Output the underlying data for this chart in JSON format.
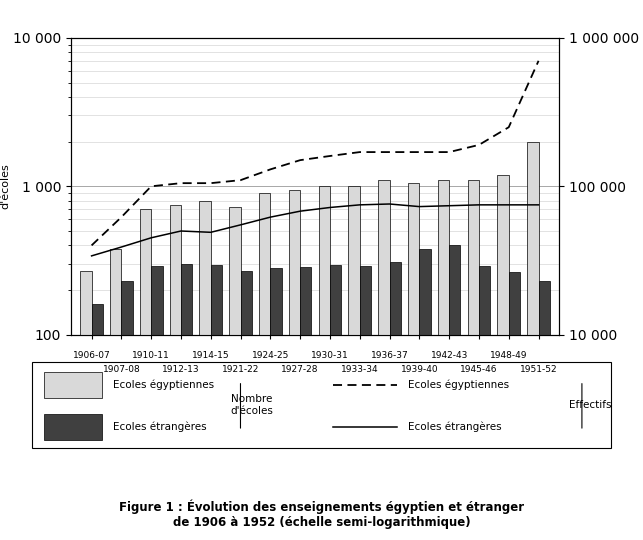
{
  "years": [
    "1906-07",
    "1907-08",
    "1910-11",
    "1912-13",
    "1914-15",
    "1921-22",
    "1924-25",
    "1927-28",
    "1930-31",
    "1933-34",
    "1936-37",
    "1939-40",
    "1942-43",
    "1945-46",
    "1948-49",
    "1951-52"
  ],
  "x_positions": [
    0,
    1,
    2,
    3,
    4,
    5,
    6,
    7,
    8,
    9,
    10,
    11,
    12,
    13,
    14,
    15
  ],
  "xtick_top_labels": [
    "1906-07",
    "",
    "1910-11",
    "",
    "1914-15",
    "",
    "1924-25",
    "",
    "1930-31",
    "",
    "1936-37",
    "",
    "1942-43",
    "",
    "1948-49",
    ""
  ],
  "xtick_bot_labels": [
    "",
    "1907-08",
    "",
    "1912-13",
    "",
    "1921-22",
    "",
    "1927-28",
    "",
    "1933-34",
    "",
    "1939-40",
    "",
    "1945-46",
    "",
    "1951-52"
  ],
  "ecoles_egyptiennes": [
    270,
    380,
    700,
    750,
    800,
    720,
    900,
    950,
    1000,
    1000,
    1100,
    1050,
    1100,
    1100,
    1200,
    2000
  ],
  "ecoles_etrangeres": [
    160,
    230,
    290,
    300,
    295,
    270,
    280,
    285,
    295,
    290,
    310,
    380,
    400,
    290,
    265,
    230
  ],
  "effectifs_egyptiens_right": [
    40000,
    62000,
    100000,
    105000,
    105000,
    110000,
    130000,
    150000,
    160000,
    170000,
    170000,
    170000,
    170000,
    190000,
    250000,
    700000
  ],
  "effectifs_etrangers_right": [
    34000,
    39000,
    45000,
    50000,
    49000,
    55000,
    62000,
    68000,
    72000,
    75000,
    76000,
    73000,
    74000,
    75000,
    75000,
    75000
  ],
  "bar_width": 0.38,
  "left_ylim": [
    100,
    10000
  ],
  "right_ylim": [
    10000,
    1000000
  ],
  "color_egyptien_bar": "#d9d9d9",
  "color_etranger_bar": "#404040",
  "title": "Figure 1 : Évolution des enseignements égyptien et étranger\nde 1906 à 1952 (échelle semi-logarithmique)",
  "ylabel_left": "Nombre\nd'écoles",
  "ylabel_right": "Effectifs",
  "legend_bar_egyptien": "Ecoles égyptiennes",
  "legend_bar_etranger": "Ecoles étrangères",
  "legend_line_egyptien": "Ecoles égyptiennes",
  "legend_line_etranger": "Ecoles étrangères",
  "legend_nombre_label": "Nombre\nd'écoles",
  "legend_effectifs_label": "Effectifs"
}
